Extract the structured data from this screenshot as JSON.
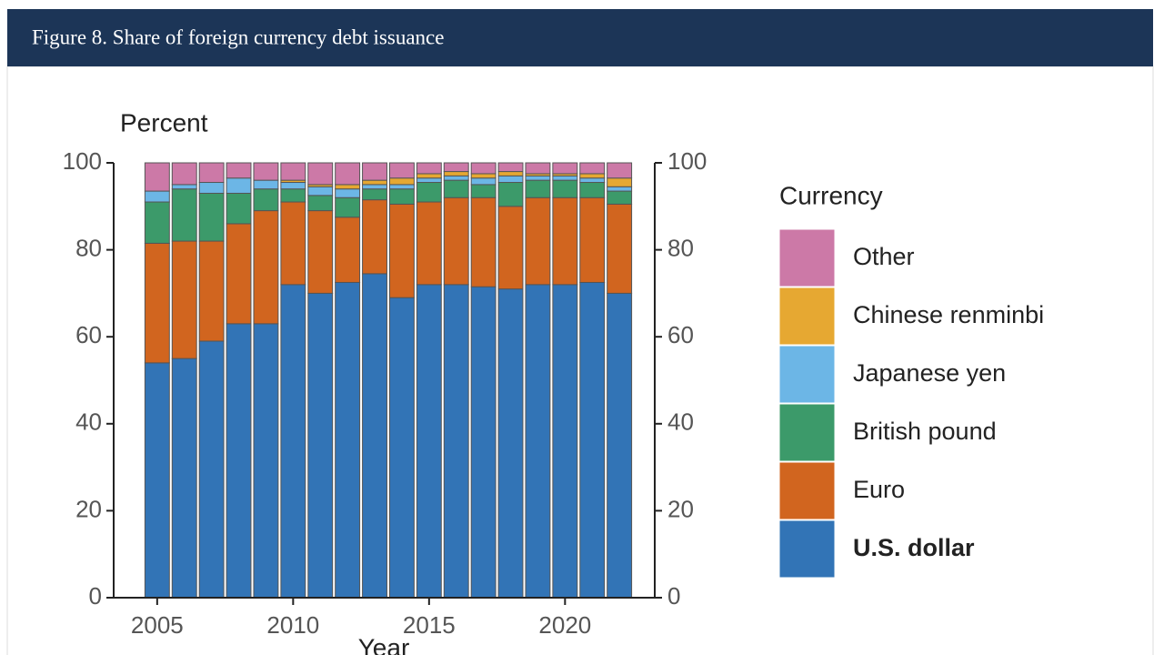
{
  "header": {
    "title": "Figure 8. Share of foreign currency debt issuance"
  },
  "chart_data": {
    "type": "stacked_bar",
    "y_label": "Percent",
    "x_label": "Year",
    "legend_title": "Currency",
    "x": [
      2005,
      2006,
      2007,
      2008,
      2009,
      2010,
      2011,
      2012,
      2013,
      2014,
      2015,
      2016,
      2017,
      2018,
      2019,
      2020,
      2021,
      2022
    ],
    "xlim": [
      2003.4,
      2023.3
    ],
    "xticks": [
      2005,
      2010,
      2015,
      2020
    ],
    "ylim": [
      0,
      100
    ],
    "yticks": [
      0,
      20,
      40,
      60,
      80,
      100
    ],
    "y2lim": [
      0,
      100
    ],
    "y2ticks": [
      0,
      20,
      40,
      60,
      80,
      100
    ],
    "legend": "right",
    "series": [
      {
        "name": "U.S. dollar",
        "color": "#3274b6",
        "values": [
          54,
          55,
          59,
          63,
          63,
          72,
          70,
          72.5,
          74.5,
          69,
          72,
          72,
          71.5,
          71,
          72,
          72,
          72.5,
          70
        ]
      },
      {
        "name": "Euro",
        "color": "#d1651f",
        "values": [
          27.5,
          27,
          23,
          23,
          26,
          19,
          19,
          15,
          17,
          21.5,
          19,
          20,
          20.5,
          19,
          20,
          20,
          19.5,
          20.5
        ]
      },
      {
        "name": "British pound",
        "color": "#3c9a6a",
        "values": [
          9.5,
          12,
          11,
          7,
          5,
          3,
          3.5,
          4.5,
          2.5,
          3.5,
          4.5,
          4,
          3,
          5.5,
          4,
          4,
          3.5,
          3
        ]
      },
      {
        "name": "Japanese yen",
        "color": "#6cb6e6",
        "values": [
          2.5,
          1,
          2.5,
          3.5,
          2,
          1.5,
          2,
          2,
          1,
          1,
          1,
          1,
          1.5,
          1.5,
          1,
          1,
          1,
          1
        ]
      },
      {
        "name": "Chinese renminbi",
        "color": "#e6a832",
        "values": [
          0,
          0,
          0,
          0,
          0,
          0.5,
          0.5,
          1,
          1,
          1.5,
          1,
          1,
          1,
          1,
          0.5,
          0.5,
          1,
          2
        ]
      },
      {
        "name": "Other",
        "color": "#cc79a7",
        "values": [
          6.5,
          5,
          4.5,
          3.5,
          4,
          4,
          5,
          5,
          4,
          3.5,
          2.5,
          2,
          2.5,
          2,
          2.5,
          2.5,
          2.5,
          3.5
        ]
      }
    ]
  }
}
